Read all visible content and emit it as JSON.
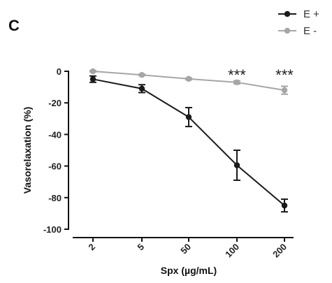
{
  "panel_label": "C",
  "chart_data": {
    "type": "line",
    "categories": [
      "2",
      "5",
      "50",
      "100",
      "200"
    ],
    "ylabel": "Vasorelaxation (%)",
    "xlabel": "Spx (µg/mL)",
    "ylim": [
      -100,
      0
    ],
    "yticks": [
      0,
      -20,
      -40,
      -60,
      -80,
      -100
    ],
    "ytick_labels": [
      "0",
      "-20",
      "-40",
      "-60",
      "-80",
      "-100"
    ],
    "grid": false,
    "legend_position": "top-right",
    "series": [
      {
        "name": "E +",
        "color": "#1a1a1a",
        "values": [
          -5,
          -11,
          -29,
          -59.5,
          -85
        ],
        "errors": [
          2,
          2.5,
          6,
          9.5,
          4
        ]
      },
      {
        "name": "E -",
        "color": "#a6a6a6",
        "values": [
          0,
          -2.3,
          -4.8,
          -7,
          -12
        ],
        "errors": [
          0.4,
          0.5,
          0.6,
          1,
          2.5
        ]
      }
    ],
    "annotations": [
      {
        "category": "100",
        "text": "***"
      },
      {
        "category": "200",
        "text": "***"
      }
    ]
  }
}
